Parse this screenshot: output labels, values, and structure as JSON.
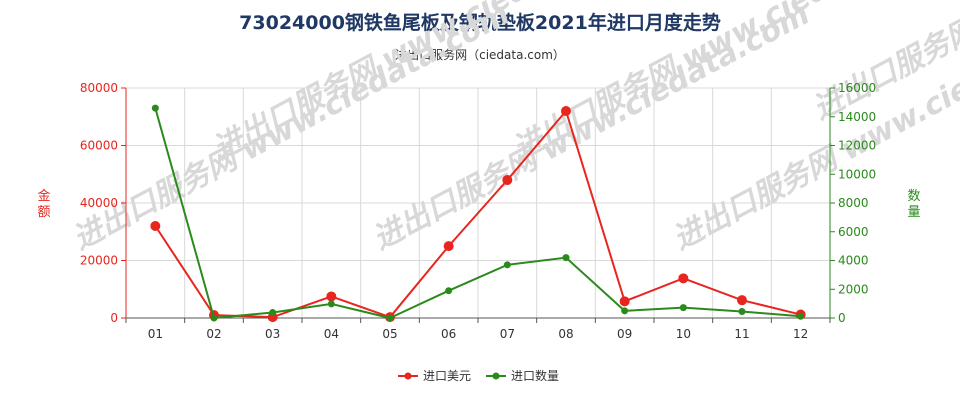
{
  "chart_data": {
    "type": "line",
    "title": "73024000钢铁鱼尾板及钢轨垫板2021年进口月度走势",
    "subtitle": "进出口服务网（ciedata.com）",
    "watermark": "进出口服务网 www.ciedata.com",
    "categories": [
      "01",
      "02",
      "03",
      "04",
      "05",
      "06",
      "07",
      "08",
      "09",
      "10",
      "11",
      "12"
    ],
    "y_left": {
      "label": "金额",
      "ylim": [
        0,
        80000
      ],
      "ticks": [
        "0",
        "20000",
        "40000",
        "60000",
        "80000"
      ],
      "color": "#e8251f"
    },
    "y_right": {
      "label": "数量",
      "ylim": [
        0,
        16000
      ],
      "ticks": [
        "0",
        "2000",
        "4000",
        "6000",
        "8000",
        "10000",
        "12000",
        "14000",
        "16000"
      ],
      "color": "#2a8a1c"
    },
    "series": [
      {
        "name": "进口美元",
        "axis": "left",
        "color": "#e8251f",
        "values": [
          32000,
          1000,
          300,
          7500,
          300,
          25000,
          48000,
          72000,
          5800,
          13800,
          6200,
          1200
        ]
      },
      {
        "name": "进口数量",
        "axis": "right",
        "color": "#2a8a1c",
        "values": [
          14600,
          0,
          380,
          980,
          0,
          1900,
          3700,
          4200,
          500,
          720,
          450,
          120
        ]
      }
    ],
    "grid": true,
    "legend_position": "bottom-center"
  }
}
